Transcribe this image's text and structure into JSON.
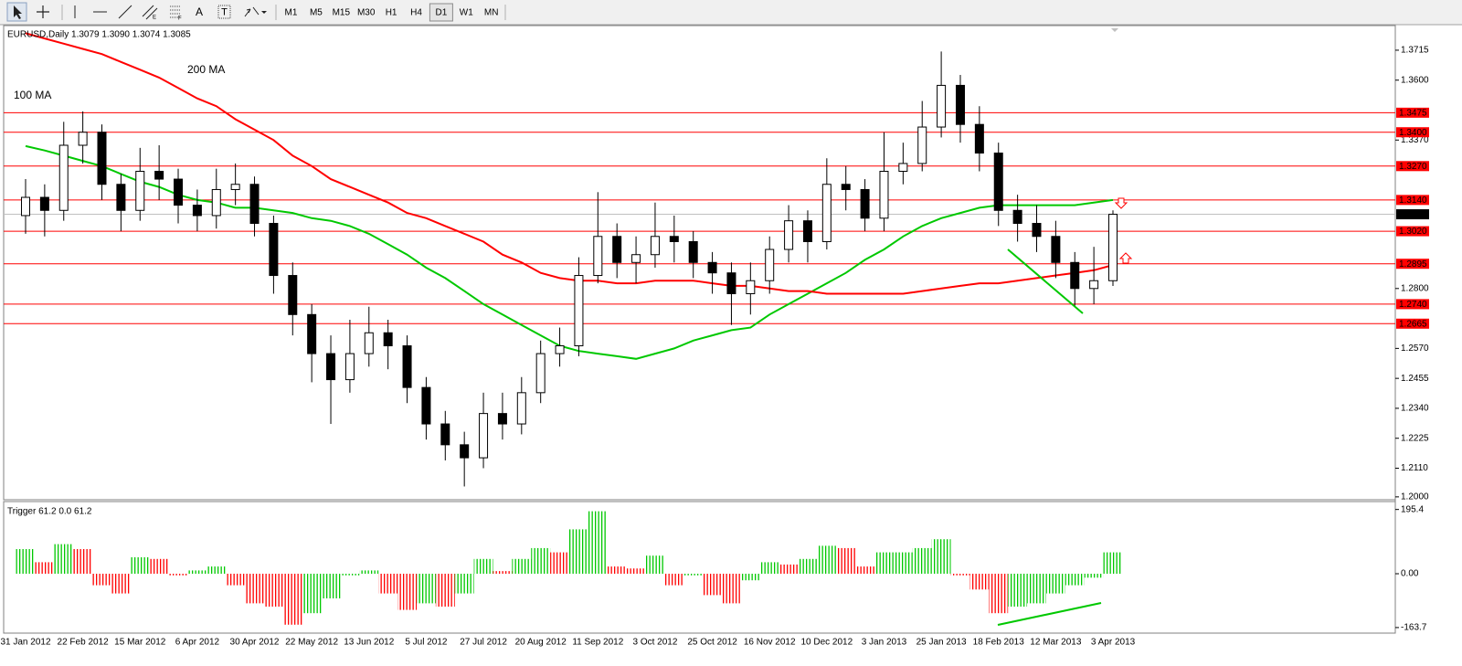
{
  "toolbar": {
    "tools": [
      "A",
      "T"
    ],
    "timeframes": [
      {
        "label": "M1"
      },
      {
        "label": "M5"
      },
      {
        "label": "M15"
      },
      {
        "label": "M30"
      },
      {
        "label": "H1"
      },
      {
        "label": "H4"
      },
      {
        "label": "D1",
        "active": true
      },
      {
        "label": "W1"
      },
      {
        "label": "MN"
      }
    ]
  },
  "chart_data": [
    {
      "type": "candlestick",
      "title": "EURUSD,Daily  1.3079 1.3090 1.3074 1.3085",
      "categories": [
        "31 Jan 2012",
        null,
        null,
        "22 Feb 2012",
        null,
        null,
        "15 Mar 2012",
        null,
        null,
        "6 Apr 2012",
        null,
        null,
        "30 Apr 2012",
        null,
        null,
        "22 May 2012",
        null,
        null,
        "13 Jun 2012",
        null,
        null,
        "5 Jul 2012",
        null,
        null,
        "27 Jul 2012",
        null,
        null,
        "20 Aug 2012",
        null,
        null,
        "11 Sep 2012",
        null,
        null,
        "3 Oct 2012",
        null,
        null,
        "25 Oct 2012",
        null,
        null,
        "16 Nov 2012",
        null,
        null,
        "10 Dec 2012",
        null,
        null,
        "3 Jan 2013",
        null,
        null,
        "25 Jan 2013",
        null,
        null,
        "18 Feb 2013",
        null,
        null,
        "12 Mar 2013",
        null,
        null,
        "3 Apr 2013"
      ],
      "open": [
        1.308,
        1.315,
        1.31,
        1.335,
        1.34,
        1.32,
        1.31,
        1.325,
        1.322,
        1.312,
        1.308,
        1.318,
        1.32,
        1.305,
        1.285,
        1.27,
        1.255,
        1.245,
        1.255,
        1.263,
        1.258,
        1.242,
        1.228,
        1.22,
        1.215,
        1.232,
        1.228,
        1.24,
        1.255,
        1.258,
        1.285,
        1.3,
        1.29,
        1.293,
        1.3,
        1.298,
        1.29,
        1.286,
        1.278,
        1.283,
        1.295,
        1.306,
        1.298,
        1.32,
        1.318,
        1.307,
        1.325,
        1.328,
        1.342,
        1.358,
        1.343,
        1.332,
        1.31,
        1.305,
        1.3,
        1.29,
        1.28,
        1.283
      ],
      "high": [
        1.322,
        1.32,
        1.344,
        1.348,
        1.343,
        1.324,
        1.334,
        1.335,
        1.326,
        1.318,
        1.326,
        1.328,
        1.323,
        1.308,
        1.29,
        1.274,
        1.262,
        1.268,
        1.273,
        1.268,
        1.262,
        1.246,
        1.233,
        1.225,
        1.24,
        1.24,
        1.246,
        1.26,
        1.265,
        1.292,
        1.317,
        1.305,
        1.3,
        1.313,
        1.308,
        1.302,
        1.294,
        1.29,
        1.29,
        1.3,
        1.312,
        1.31,
        1.33,
        1.327,
        1.322,
        1.34,
        1.336,
        1.352,
        1.371,
        1.362,
        1.35,
        1.336,
        1.316,
        1.312,
        1.306,
        1.294,
        1.296,
        1.31
      ],
      "low": [
        1.301,
        1.3,
        1.306,
        1.328,
        1.314,
        1.302,
        1.306,
        1.314,
        1.305,
        1.302,
        1.303,
        1.312,
        1.3,
        1.278,
        1.262,
        1.244,
        1.228,
        1.24,
        1.25,
        1.249,
        1.236,
        1.222,
        1.214,
        1.204,
        1.211,
        1.222,
        1.224,
        1.236,
        1.25,
        1.254,
        1.282,
        1.284,
        1.282,
        1.288,
        1.29,
        1.284,
        1.278,
        1.266,
        1.27,
        1.278,
        1.29,
        1.29,
        1.295,
        1.31,
        1.302,
        1.302,
        1.32,
        1.325,
        1.338,
        1.336,
        1.325,
        1.304,
        1.298,
        1.294,
        1.284,
        1.273,
        1.274,
        1.281
      ],
      "close": [
        1.315,
        1.31,
        1.335,
        1.34,
        1.32,
        1.31,
        1.325,
        1.322,
        1.312,
        1.308,
        1.318,
        1.32,
        1.305,
        1.285,
        1.27,
        1.255,
        1.245,
        1.255,
        1.263,
        1.258,
        1.242,
        1.228,
        1.22,
        1.215,
        1.232,
        1.228,
        1.24,
        1.255,
        1.258,
        1.285,
        1.3,
        1.29,
        1.293,
        1.3,
        1.298,
        1.29,
        1.286,
        1.278,
        1.283,
        1.295,
        1.306,
        1.298,
        1.32,
        1.318,
        1.307,
        1.325,
        1.328,
        1.342,
        1.358,
        1.343,
        1.332,
        1.31,
        1.305,
        1.3,
        1.29,
        1.28,
        1.283,
        1.3085
      ],
      "up_color": "#ffffff",
      "down_color": "#000000",
      "series": [
        {
          "name": "100 MA",
          "color": "#00c800",
          "values": [
            1.3347,
            1.333,
            1.331,
            1.329,
            1.327,
            1.324,
            1.321,
            1.319,
            1.316,
            1.314,
            1.313,
            1.311,
            1.311,
            1.31,
            1.309,
            1.307,
            1.306,
            1.304,
            1.301,
            1.297,
            1.293,
            1.288,
            1.284,
            1.279,
            1.274,
            1.27,
            1.266,
            1.262,
            1.258,
            1.256,
            1.255,
            1.254,
            1.253,
            1.255,
            1.257,
            1.26,
            1.262,
            1.264,
            1.265,
            1.27,
            1.274,
            1.278,
            1.282,
            1.286,
            1.291,
            1.295,
            1.3,
            1.304,
            1.307,
            1.309,
            1.311,
            1.312,
            1.312,
            1.312,
            1.312,
            1.312,
            1.313,
            1.314
          ]
        },
        {
          "name": "200 MA",
          "color": "#ff0000",
          "values": [
            1.378,
            1.376,
            1.374,
            1.372,
            1.37,
            1.367,
            1.364,
            1.361,
            1.357,
            1.353,
            1.35,
            1.345,
            1.341,
            1.337,
            1.331,
            1.327,
            1.322,
            1.319,
            1.316,
            1.313,
            1.309,
            1.307,
            1.304,
            1.301,
            1.298,
            1.293,
            1.29,
            1.286,
            1.284,
            1.283,
            1.283,
            1.282,
            1.282,
            1.283,
            1.283,
            1.283,
            1.282,
            1.281,
            1.281,
            1.28,
            1.279,
            1.279,
            1.278,
            1.278,
            1.278,
            1.278,
            1.278,
            1.279,
            1.28,
            1.281,
            1.282,
            1.282,
            1.283,
            1.284,
            1.285,
            1.286,
            1.287,
            1.289
          ]
        }
      ],
      "levels": [
        1.3475,
        {
          "value": 1.34,
          "label": "1.3400"
        },
        {
          "value": 1.327,
          "label": "1.3270"
        },
        {
          "value": 1.314,
          "label": "1.3140"
        },
        {
          "value": 1.302,
          "label": "1.3020"
        },
        1.2895,
        {
          "value": 1.274,
          "label": "1.2740"
        },
        1.2665
      ],
      "level_color": "#ff0000",
      "last_price": 1.3085,
      "ylim": [
        1.1989,
        1.3806
      ],
      "yticks": [
        1.3715,
        {
          "value": 1.36,
          "label": "1.3600"
        },
        {
          "value": 1.337,
          "label": "1.3370"
        },
        {
          "value": 1.28,
          "label": "1.2800"
        },
        {
          "value": 1.257,
          "label": "1.2570"
        },
        1.2455,
        {
          "value": 1.234,
          "label": "1.2340"
        },
        1.2225,
        {
          "value": 1.211,
          "label": "1.2110"
        },
        {
          "value": 1.2,
          "label": "1.2000"
        }
      ]
    },
    {
      "type": "histogram",
      "title": "Trigger 61.2 0.0 61.2",
      "values": [
        75,
        35,
        90,
        75,
        -35,
        -60,
        50,
        45,
        -5,
        10,
        22,
        -35,
        -90,
        -100,
        -155,
        -120,
        -75,
        -5,
        10,
        -60,
        -110,
        -90,
        -100,
        -60,
        45,
        8,
        45,
        78,
        65,
        135,
        190,
        22,
        16,
        55,
        -35,
        -5,
        -65,
        -90,
        -20,
        35,
        28,
        45,
        85,
        78,
        22,
        65,
        65,
        78,
        105,
        -5,
        -48,
        -120,
        -100,
        -90,
        -60,
        -35,
        -12,
        65
      ],
      "up_color": "#00c800",
      "down_color": "#ff0000",
      "ylim": [
        -180.6,
        216.7
      ],
      "yticks": [
        195.4,
        {
          "value": 0,
          "label": "0.00"
        },
        -163.7
      ]
    }
  ]
}
